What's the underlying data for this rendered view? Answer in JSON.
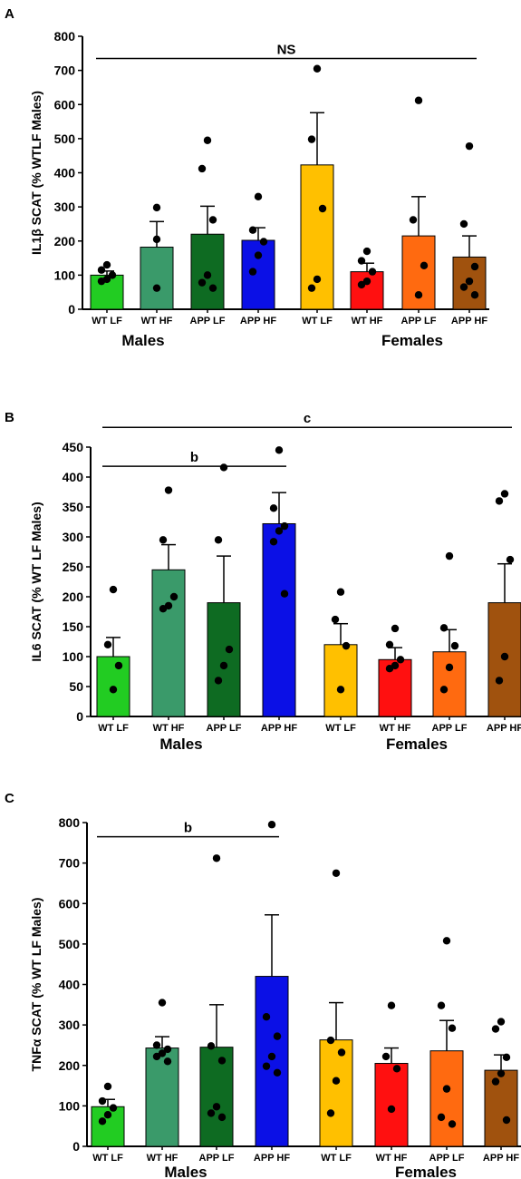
{
  "chart_data": [
    {
      "panel": "A",
      "type": "bar",
      "ylabel": "IL1β SCAT (% WTLF Males)",
      "ylim": [
        0,
        800
      ],
      "yticks": [
        0,
        100,
        200,
        300,
        400,
        500,
        600,
        700,
        800
      ],
      "categories": [
        "WT LF",
        "WT HF",
        "APP LF",
        "APP HF",
        "WT LF",
        "WT HF",
        "APP LF",
        "APP HF"
      ],
      "groups": [
        {
          "name": "Males",
          "indices": [
            0,
            1,
            2,
            3
          ]
        },
        {
          "name": "Females",
          "indices": [
            4,
            5,
            6,
            7
          ]
        }
      ],
      "colors": [
        "#22cc22",
        "#3a9a6a",
        "#0e6b22",
        "#0b10e6",
        "#ffc000",
        "#ff1010",
        "#ff6a10",
        "#a0520e"
      ],
      "values": [
        100,
        182,
        220,
        202,
        423,
        110,
        215,
        153
      ],
      "errors": [
        12,
        75,
        82,
        37,
        153,
        25,
        115,
        62
      ],
      "points": [
        [
          130,
          115,
          100,
          88,
          82
        ],
        [
          298,
          205,
          62
        ],
        [
          495,
          412,
          262,
          100,
          78,
          62
        ],
        [
          330,
          232,
          198,
          158,
          110
        ],
        [
          705,
          498,
          295,
          88,
          62
        ],
        [
          170,
          142,
          110,
          82,
          72
        ],
        [
          612,
          262,
          128,
          42
        ],
        [
          478,
          250,
          125,
          82,
          65,
          42
        ]
      ],
      "significance": [
        {
          "label": "NS",
          "from": 0,
          "to": 7,
          "y": 735
        }
      ]
    },
    {
      "panel": "B",
      "type": "bar",
      "ylabel": "IL6 SCAT (% WT LF Males)",
      "ylim": [
        0,
        450
      ],
      "yticks": [
        0,
        50,
        100,
        150,
        200,
        250,
        300,
        350,
        400,
        450
      ],
      "categories": [
        "WT LF",
        "WT HF",
        "APP LF",
        "APP HF",
        "WT LF",
        "WT HF",
        "APP LF",
        "APP HF"
      ],
      "groups": [
        {
          "name": "Males",
          "indices": [
            0,
            1,
            2,
            3
          ]
        },
        {
          "name": "Females",
          "indices": [
            4,
            5,
            6,
            7
          ]
        }
      ],
      "colors": [
        "#22cc22",
        "#3a9a6a",
        "#0e6b22",
        "#0b10e6",
        "#ffc000",
        "#ff1010",
        "#ff6a10",
        "#a0520e"
      ],
      "values": [
        100,
        245,
        190,
        322,
        120,
        95,
        108,
        190
      ],
      "errors": [
        32,
        42,
        78,
        52,
        35,
        20,
        37,
        65
      ],
      "points": [
        [
          212,
          120,
          85,
          45
        ],
        [
          378,
          295,
          200,
          185,
          180
        ],
        [
          416,
          295,
          112,
          85,
          60
        ],
        [
          445,
          348,
          318,
          310,
          292,
          205
        ],
        [
          208,
          162,
          118,
          45
        ],
        [
          147,
          120,
          95,
          85,
          80
        ],
        [
          268,
          148,
          118,
          82,
          45
        ],
        [
          372,
          360,
          262,
          100,
          60
        ]
      ],
      "significance": [
        {
          "label": "b",
          "from": 0,
          "to": 3,
          "y": 418
        },
        {
          "label": "c",
          "from": 0,
          "to": 7,
          "y": 483
        }
      ]
    },
    {
      "panel": "C",
      "type": "bar",
      "ylabel": "TNFα SCAT (% WT LF Males)",
      "ylim": [
        0,
        800
      ],
      "yticks": [
        0,
        100,
        200,
        300,
        400,
        500,
        600,
        700,
        800
      ],
      "categories": [
        "WT LF",
        "WT HF",
        "APP LF",
        "APP HF",
        "WT LF",
        "WT HF",
        "APP LF",
        "APP HF"
      ],
      "groups": [
        {
          "name": "Males",
          "indices": [
            0,
            1,
            2,
            3
          ]
        },
        {
          "name": "Females",
          "indices": [
            4,
            5,
            6,
            7
          ]
        }
      ],
      "colors": [
        "#22cc22",
        "#3a9a6a",
        "#0e6b22",
        "#0b10e6",
        "#ffc000",
        "#ff1010",
        "#ff6a10",
        "#a0520e"
      ],
      "values": [
        98,
        243,
        245,
        420,
        263,
        205,
        236,
        188
      ],
      "errors": [
        18,
        28,
        105,
        152,
        92,
        38,
        75,
        38
      ],
      "points": [
        [
          148,
          112,
          95,
          78,
          62
        ],
        [
          355,
          250,
          240,
          230,
          222,
          210
        ],
        [
          712,
          248,
          212,
          98,
          82,
          72
        ],
        [
          795,
          320,
          272,
          222,
          198,
          182
        ],
        [
          675,
          262,
          232,
          162,
          82
        ],
        [
          348,
          222,
          192,
          92
        ],
        [
          508,
          348,
          292,
          142,
          72,
          55
        ],
        [
          308,
          290,
          220,
          180,
          160,
          65
        ]
      ],
      "significance": [
        {
          "label": "b",
          "from": 0,
          "to": 3,
          "y": 765
        }
      ]
    }
  ]
}
